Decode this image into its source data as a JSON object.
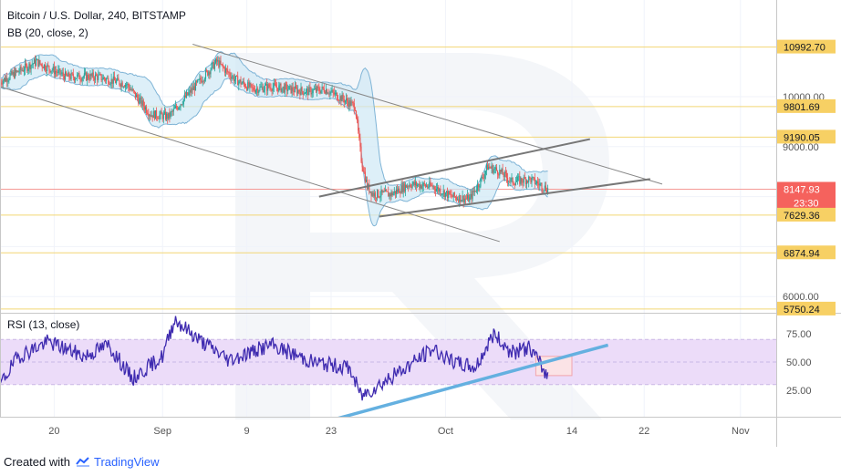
{
  "chart_data": [
    {
      "type": "candlestick",
      "title": "Bitcoin / U.S. Dollar, 240, BITSTAMP",
      "indicator": "BB (20, close, 2)",
      "x_tick_labels": [
        "20",
        "Sep",
        "9",
        "23",
        "Oct",
        "14",
        "22",
        "Nov"
      ],
      "y_tick_labels": [
        "10000.00",
        "9000.00",
        "6000.00"
      ],
      "ylim": [
        5750,
        11100
      ],
      "grid": true,
      "price_levels": [
        {
          "label": "10992.70",
          "value": 10992.7
        },
        {
          "label": "9801.69",
          "value": 9801.69
        },
        {
          "label": "9190.05",
          "value": 9190.05
        },
        {
          "label": "8147.93",
          "value": 8147.93,
          "countdown": "23:30",
          "current": true
        },
        {
          "label": "7629.36",
          "value": 7629.36
        },
        {
          "label": "6874.94",
          "value": 6874.94
        },
        {
          "label": "5750.24",
          "value": 5750.24
        }
      ],
      "price_path": [
        {
          "d": 0,
          "v": 10300
        },
        {
          "d": 6,
          "v": 10700
        },
        {
          "d": 11,
          "v": 10400
        },
        {
          "d": 16,
          "v": 10400
        },
        {
          "d": 21,
          "v": 10250
        },
        {
          "d": 25,
          "v": 9650
        },
        {
          "d": 28,
          "v": 9600
        },
        {
          "d": 32,
          "v": 10150
        },
        {
          "d": 36,
          "v": 10700
        },
        {
          "d": 39,
          "v": 10350
        },
        {
          "d": 42,
          "v": 10150
        },
        {
          "d": 45,
          "v": 10200
        },
        {
          "d": 48,
          "v": 10150
        },
        {
          "d": 51,
          "v": 10100
        },
        {
          "d": 54,
          "v": 10150
        },
        {
          "d": 57,
          "v": 9950
        },
        {
          "d": 59,
          "v": 9800
        },
        {
          "d": 60,
          "v": 8750
        },
        {
          "d": 61,
          "v": 8200
        },
        {
          "d": 62,
          "v": 8050
        },
        {
          "d": 65,
          "v": 8050
        },
        {
          "d": 68,
          "v": 8250
        },
        {
          "d": 72,
          "v": 8200
        },
        {
          "d": 75,
          "v": 8000
        },
        {
          "d": 78,
          "v": 7950
        },
        {
          "d": 80,
          "v": 8350
        },
        {
          "d": 81,
          "v": 8600
        },
        {
          "d": 83,
          "v": 8500
        },
        {
          "d": 85,
          "v": 8300
        },
        {
          "d": 88,
          "v": 8350
        },
        {
          "d": 91,
          "v": 8150
        }
      ],
      "trend_lines": [
        {
          "from": {
            "d": 32,
            "v": 11050
          },
          "to": {
            "d": 110,
            "v": 8250
          }
        },
        {
          "from": {
            "d": 0,
            "v": 10200
          },
          "to": {
            "d": 83,
            "v": 7100
          }
        },
        {
          "from": {
            "d": 53,
            "v": 8000
          },
          "to": {
            "d": 98,
            "v": 9150
          }
        },
        {
          "from": {
            "d": 63,
            "v": 7600
          },
          "to": {
            "d": 108,
            "v": 8350
          }
        }
      ]
    },
    {
      "type": "line",
      "title": "RSI (13, close)",
      "y_tick_labels": [
        "75.00",
        "50.00",
        "25.00"
      ],
      "ylim": [
        0,
        100
      ],
      "band": [
        30,
        70
      ],
      "rsi_path": [
        {
          "d": 0,
          "v": 30
        },
        {
          "d": 3,
          "v": 55
        },
        {
          "d": 8,
          "v": 68
        },
        {
          "d": 14,
          "v": 55
        },
        {
          "d": 18,
          "v": 65
        },
        {
          "d": 22,
          "v": 35
        },
        {
          "d": 27,
          "v": 55
        },
        {
          "d": 29,
          "v": 88
        },
        {
          "d": 33,
          "v": 70
        },
        {
          "d": 38,
          "v": 52
        },
        {
          "d": 45,
          "v": 65
        },
        {
          "d": 52,
          "v": 50
        },
        {
          "d": 58,
          "v": 45
        },
        {
          "d": 60,
          "v": 20
        },
        {
          "d": 66,
          "v": 40
        },
        {
          "d": 72,
          "v": 62
        },
        {
          "d": 75,
          "v": 50
        },
        {
          "d": 79,
          "v": 45
        },
        {
          "d": 82,
          "v": 75
        },
        {
          "d": 85,
          "v": 58
        },
        {
          "d": 88,
          "v": 63
        },
        {
          "d": 91,
          "v": 37
        }
      ],
      "trend_line": {
        "from": {
          "d": 56,
          "v": 0
        },
        "to": {
          "d": 101,
          "v": 65
        }
      },
      "highlight": {
        "d_from": 89,
        "d_to": 95,
        "v_from": 38,
        "v_to": 55
      }
    }
  ],
  "footer": {
    "created_with": "Created with",
    "brand": "TradingView"
  },
  "colors": {
    "up": "#26a69a",
    "down": "#ef5350",
    "bb_fill": "#cfe8f5",
    "bb_line": "#7fb4d6",
    "level_line": "#f2d675",
    "level_bg": "#f7d064",
    "current_bg": "#f5625d",
    "rsi_line": "#3f2bb0",
    "rsi_band": "#ecdcf9",
    "trend": "#666666",
    "rsi_trend": "#64b0e0"
  }
}
